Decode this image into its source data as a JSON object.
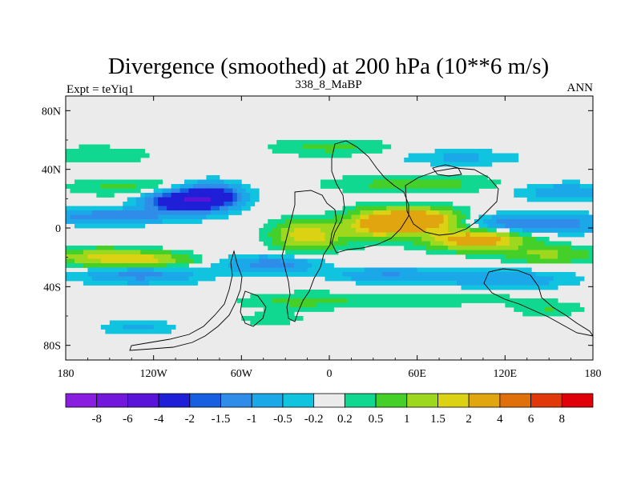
{
  "chart_data": {
    "type": "heatmap",
    "title": "Divergence (smoothed) at 200 hPa (10**6 m/s)",
    "left_label": "Expt = teYiq1",
    "center_label": "338_8_MaBP",
    "right_label": "ANN",
    "x_ticks": [
      {
        "value": -180,
        "label": "180"
      },
      {
        "value": -120,
        "label": "120W"
      },
      {
        "value": -60,
        "label": "60W"
      },
      {
        "value": 0,
        "label": "0"
      },
      {
        "value": 60,
        "label": "60E"
      },
      {
        "value": 120,
        "label": "120E"
      },
      {
        "value": 180,
        "label": "180"
      }
    ],
    "y_ticks": [
      {
        "value": 80,
        "label": "80N"
      },
      {
        "value": 40,
        "label": "40N"
      },
      {
        "value": 0,
        "label": "0"
      },
      {
        "value": -40,
        "label": "40S"
      },
      {
        "value": -80,
        "label": "80S"
      }
    ],
    "xlim": [
      -180,
      180
    ],
    "ylim": [
      -90,
      90
    ],
    "colorbar": {
      "colors": [
        "#8a1ee0",
        "#7317dc",
        "#5a14d8",
        "#1f1fd8",
        "#155fe0",
        "#2f8ce8",
        "#1aa8e8",
        "#10c4e0",
        "#ebebeb",
        "#10d890",
        "#44d028",
        "#9ed81e",
        "#dcd214",
        "#e0a50f",
        "#e0700a",
        "#e0380a",
        "#e0000a"
      ],
      "boundaries": [
        "-8",
        "-6",
        "-4",
        "-2",
        "-1.5",
        "-1",
        "-0.5",
        "-0.2",
        "0.2",
        "0.5",
        "1",
        "1.5",
        "2",
        "4",
        "6",
        "8"
      ]
    },
    "anomalies": [
      {
        "lon": -100,
        "lat": 18,
        "w": 24,
        "h": 7,
        "v": -3.2
      },
      {
        "lon": -80,
        "lat": 22,
        "w": 20,
        "h": 8,
        "v": -2.6
      },
      {
        "lon": -150,
        "lat": 8,
        "w": 45,
        "h": 5,
        "v": -1.4
      },
      {
        "lon": 140,
        "lat": 3,
        "w": 50,
        "h": 6,
        "v": -1.6
      },
      {
        "lon": 60,
        "lat": 5,
        "w": 28,
        "h": 8,
        "v": 3.4
      },
      {
        "lon": 100,
        "lat": -8,
        "w": 32,
        "h": 7,
        "v": 2.6
      },
      {
        "lon": 30,
        "lat": 2,
        "w": 20,
        "h": 10,
        "v": 1.8
      },
      {
        "lon": -15,
        "lat": -5,
        "w": 22,
        "h": 10,
        "v": 2.0
      },
      {
        "lon": -155,
        "lat": -20,
        "w": 35,
        "h": 6,
        "v": 1.6
      },
      {
        "lon": -120,
        "lat": -22,
        "w": 28,
        "h": 5,
        "v": 1.2
      },
      {
        "lon": 150,
        "lat": -18,
        "w": 30,
        "h": 6,
        "v": 1.1
      },
      {
        "lon": -130,
        "lat": -32,
        "w": 40,
        "h": 6,
        "v": -1.2
      },
      {
        "lon": -40,
        "lat": -25,
        "w": 30,
        "h": 6,
        "v": -1.3
      },
      {
        "lon": 40,
        "lat": -32,
        "w": 35,
        "h": 5,
        "v": -1.0
      },
      {
        "lon": 120,
        "lat": -35,
        "w": 45,
        "h": 6,
        "v": -0.9
      },
      {
        "lon": -140,
        "lat": 28,
        "w": 40,
        "h": 6,
        "v": 0.6
      },
      {
        "lon": 60,
        "lat": 30,
        "w": 60,
        "h": 6,
        "v": 0.7
      },
      {
        "lon": 160,
        "lat": 25,
        "w": 35,
        "h": 6,
        "v": -0.8
      },
      {
        "lon": -160,
        "lat": 50,
        "w": 40,
        "h": 6,
        "v": 0.5
      },
      {
        "lon": 0,
        "lat": 55,
        "w": 40,
        "h": 6,
        "v": 0.6
      },
      {
        "lon": 90,
        "lat": 48,
        "w": 40,
        "h": 5,
        "v": -0.6
      },
      {
        "lon": -20,
        "lat": -50,
        "w": 40,
        "h": 6,
        "v": 0.6
      },
      {
        "lon": 70,
        "lat": -48,
        "w": 60,
        "h": 5,
        "v": 0.5
      },
      {
        "lon": -130,
        "lat": -68,
        "w": 25,
        "h": 5,
        "v": -0.6
      },
      {
        "lon": -40,
        "lat": -62,
        "w": 25,
        "h": 4,
        "v": 0.4
      },
      {
        "lon": 150,
        "lat": -55,
        "w": 25,
        "h": 5,
        "v": 0.5
      }
    ]
  }
}
